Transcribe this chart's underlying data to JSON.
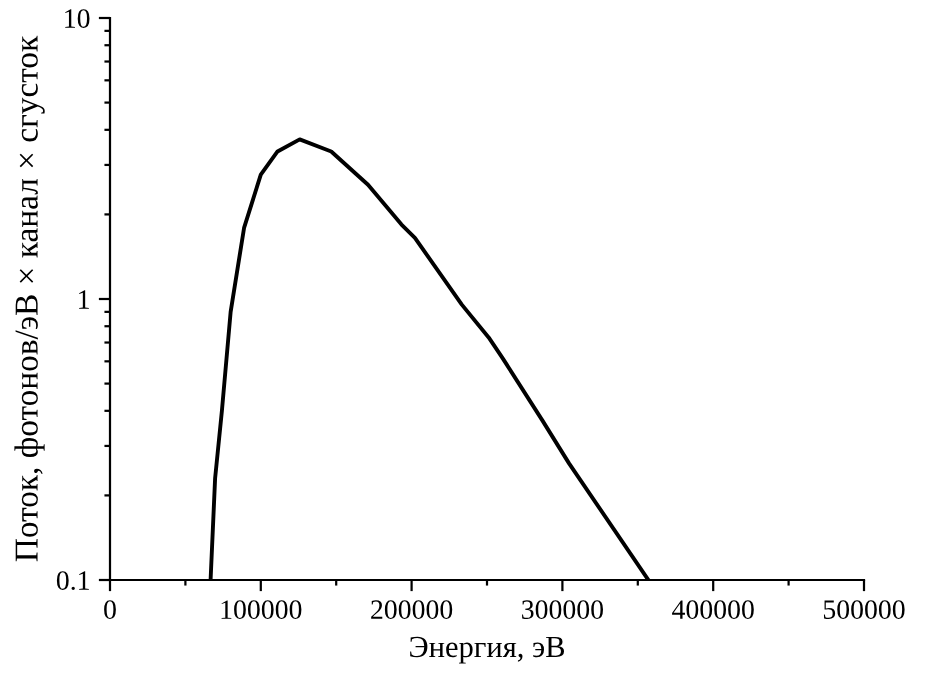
{
  "chart_data": {
    "type": "line",
    "xlabel": "Энергия, эВ",
    "ylabel": "Поток, фотонов/эВ × канал × сгусток",
    "x": [
      66700,
      69700,
      74200,
      80000,
      88900,
      100000,
      111100,
      125800,
      146700,
      171100,
      193300,
      202200,
      233300,
      251100,
      260000,
      286700,
      304400,
      357000
    ],
    "series": [
      {
        "color": "#000000",
        "values": [
          0.1,
          0.23,
          0.4,
          0.9,
          1.79,
          2.77,
          3.35,
          3.7,
          3.35,
          2.55,
          1.84,
          1.65,
          0.955,
          0.73,
          0.62,
          0.37,
          0.26,
          0.1
        ]
      }
    ],
    "log": "y",
    "xlim": [
      0,
      500000
    ],
    "ylim": [
      0.1,
      10
    ],
    "xticks": [
      0,
      {
        "value": 50000,
        "label": null
      },
      100000,
      {
        "value": 150000,
        "label": null
      },
      200000,
      {
        "value": 250000,
        "label": null
      },
      300000,
      {
        "value": 350000,
        "label": null
      },
      400000,
      {
        "value": 450000,
        "label": null
      },
      500000
    ],
    "yticks": [
      0.1,
      {
        "value": 0.2,
        "label": null
      },
      {
        "value": 0.3,
        "label": null
      },
      {
        "value": 0.4,
        "label": null
      },
      {
        "value": 0.5,
        "label": null
      },
      {
        "value": 0.6,
        "label": null
      },
      {
        "value": 0.7,
        "label": null
      },
      {
        "value": 0.8,
        "label": null
      },
      {
        "value": 0.9,
        "label": null
      },
      1,
      {
        "value": 2,
        "label": null
      },
      {
        "value": 3,
        "label": null
      },
      {
        "value": 4,
        "label": null
      },
      {
        "value": 5,
        "label": null
      },
      {
        "value": 6,
        "label": null
      },
      {
        "value": 7,
        "label": null
      },
      {
        "value": 8,
        "label": null
      },
      {
        "value": 9,
        "label": null
      },
      10
    ],
    "grid": false,
    "legend": false,
    "marker": "none",
    "line_style": "solid"
  }
}
